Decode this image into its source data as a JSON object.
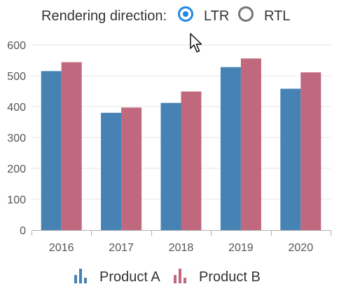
{
  "direction_selector": {
    "label": "Rendering direction:",
    "options": [
      {
        "label": "LTR",
        "checked": true
      },
      {
        "label": "RTL",
        "checked": false
      }
    ],
    "accent_color": "#1e88e5"
  },
  "chart_data": {
    "type": "bar",
    "categories": [
      "2016",
      "2017",
      "2018",
      "2019",
      "2020"
    ],
    "series": [
      {
        "name": "Product A",
        "color": "#4682b4",
        "values": [
          515,
          380,
          412,
          528,
          458
        ]
      },
      {
        "name": "Product B",
        "color": "#c0687e",
        "values": [
          544,
          397,
          449,
          556,
          511
        ]
      }
    ],
    "ylim": [
      0,
      600
    ],
    "yticks": [
      "0",
      "100",
      "200",
      "300",
      "400",
      "500",
      "600"
    ],
    "grid": true,
    "legend_position": "bottom"
  }
}
